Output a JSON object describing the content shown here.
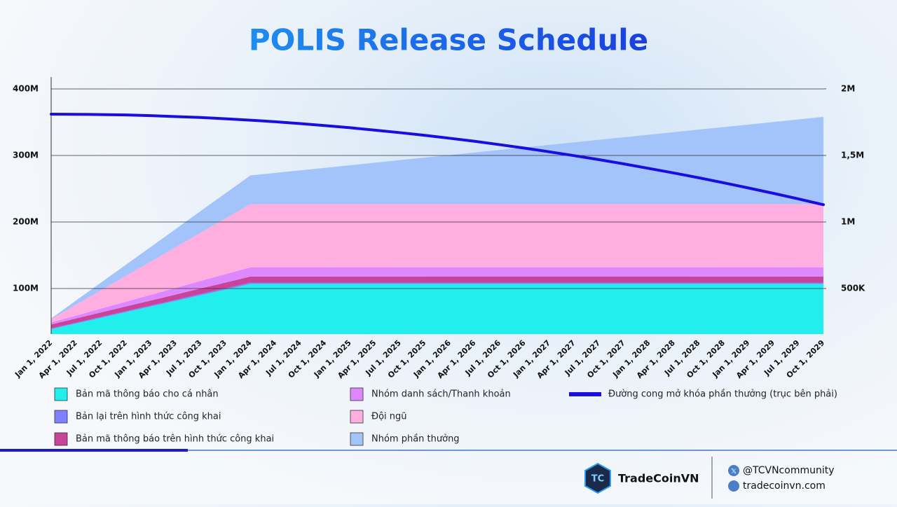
{
  "chart_data": {
    "type": "stacked-area",
    "title": "POLIS Release Schedule",
    "categories": [
      "Jan 1, 2022",
      "Apr 1, 2022",
      "Jul 1, 2022",
      "Oct 1, 2022",
      "Jan 1, 2023",
      "Apr 1, 2023",
      "Jul 1, 2023",
      "Oct 1, 2023",
      "Jan 1, 2024",
      "Apr 1, 2024",
      "Jul 1, 2024",
      "Oct 1, 2024",
      "Jan 1, 2025",
      "Apr 1, 2025",
      "Jul 1, 2025",
      "Oct 1, 2025",
      "Jan 1, 2026",
      "Apr 1, 2026",
      "Jul 1, 2026",
      "Oct 1, 2026",
      "Jan 1, 2027",
      "Apr 1, 2027",
      "Jul 1, 2027",
      "Oct 1, 2027",
      "Jan 1, 2028",
      "Apr 1, 2028",
      "Jul 1, 2028",
      "Oct 1, 2028",
      "Jan 1, 2029",
      "Apr 1, 2029",
      "Jul 1, 2029",
      "Oct 1, 2029"
    ],
    "series": [
      {
        "name": "Bản mã thông báo cho cá nhân",
        "color": "#22eeee",
        "values": [
          39,
          47.5,
          56,
          64.5,
          73,
          81.5,
          90,
          98.5,
          107,
          107,
          107,
          107,
          107,
          107,
          107,
          107,
          107,
          107,
          107,
          107,
          107,
          107,
          107,
          107,
          107,
          107,
          107,
          107,
          107,
          107,
          107,
          107
        ]
      },
      {
        "name": "Bản lại trên hình thức công khai",
        "color": "#8080ff",
        "values": [
          1,
          1.1,
          1.3,
          1.4,
          1.5,
          1.6,
          1.8,
          1.9,
          2,
          2,
          2,
          2,
          2,
          2,
          2,
          2,
          2,
          2,
          2,
          2,
          2,
          2,
          2,
          2,
          2,
          2,
          2,
          2,
          2,
          2,
          2,
          2
        ]
      },
      {
        "name": "Bản mã thông báo trên hình thức công khai",
        "color": "#c8449a",
        "values": [
          6,
          6.4,
          6.8,
          7.1,
          7.5,
          7.9,
          8.3,
          8.6,
          9,
          9,
          9,
          9,
          9,
          9,
          9,
          9,
          9,
          9,
          9,
          9,
          9,
          9,
          9,
          9,
          9,
          9,
          9,
          9,
          9,
          9,
          9,
          9
        ]
      },
      {
        "name": "Nhóm danh sách/Thanh khoản",
        "color": "#dd88ff",
        "values": [
          3,
          4.4,
          5.8,
          7.1,
          8.5,
          9.9,
          11.3,
          12.6,
          14,
          14,
          14,
          14,
          14,
          14,
          14,
          14,
          14,
          14,
          14,
          14,
          14,
          14,
          14,
          14,
          14,
          14,
          14,
          14,
          14,
          14,
          14,
          14
        ]
      },
      {
        "name": "Đội ngũ",
        "color": "#ffaee0",
        "values": [
          5,
          16.3,
          27.5,
          38.8,
          50,
          61.3,
          72.5,
          83.8,
          95,
          95,
          95,
          95,
          95,
          95,
          95,
          95,
          95,
          95,
          95,
          95,
          95,
          95,
          95,
          95,
          95,
          95,
          95,
          95,
          95,
          95,
          95,
          95
        ]
      },
      {
        "name": "Nhóm phần thưởng",
        "color": "#a3c3fb",
        "values": [
          1,
          6.3,
          11.5,
          16.8,
          22,
          27.3,
          32.5,
          37.8,
          43,
          46.8,
          50.7,
          54.5,
          58.3,
          62.1,
          66.0,
          69.8,
          73.6,
          77.4,
          81.3,
          85.1,
          88.9,
          92.7,
          96.6,
          100.4,
          104.2,
          108.0,
          111.9,
          115.7,
          119.5,
          123.3,
          127.2,
          131
        ]
      },
      {
        "name": "Đường cong mở khóa phần thưởng (trục bên phải)",
        "color": "#1a0de0",
        "axis": "y2",
        "values": [
          1.81,
          1.809,
          1.807,
          1.804,
          1.799,
          1.792,
          1.785,
          1.775,
          1.765,
          1.753,
          1.739,
          1.724,
          1.708,
          1.69,
          1.671,
          1.651,
          1.629,
          1.606,
          1.581,
          1.555,
          1.527,
          1.498,
          1.468,
          1.436,
          1.402,
          1.368,
          1.332,
          1.294,
          1.255,
          1.215,
          1.173,
          1.13
        ]
      }
    ],
    "ylim": [
      31.6,
      417.9
    ],
    "yticks": [
      {
        "value": 100,
        "label": "100M"
      },
      {
        "value": 200,
        "label": "200M"
      },
      {
        "value": 300,
        "label": "300M"
      },
      {
        "value": 400,
        "label": "400M"
      }
    ],
    "y2lim": [
      0.158,
      2.089
    ],
    "y2ticks": [
      {
        "value": 0.5,
        "label": "500K"
      },
      {
        "value": 1,
        "label": "1M"
      },
      {
        "value": 1.5,
        "label": "1,5M"
      },
      {
        "value": 2,
        "label": "2M"
      }
    ],
    "grid": true,
    "legend": "bottom"
  },
  "footer": {
    "brand": "TradeCoinVN",
    "social": "@TCVNcommunity",
    "website": "tradecoinvn.com"
  }
}
